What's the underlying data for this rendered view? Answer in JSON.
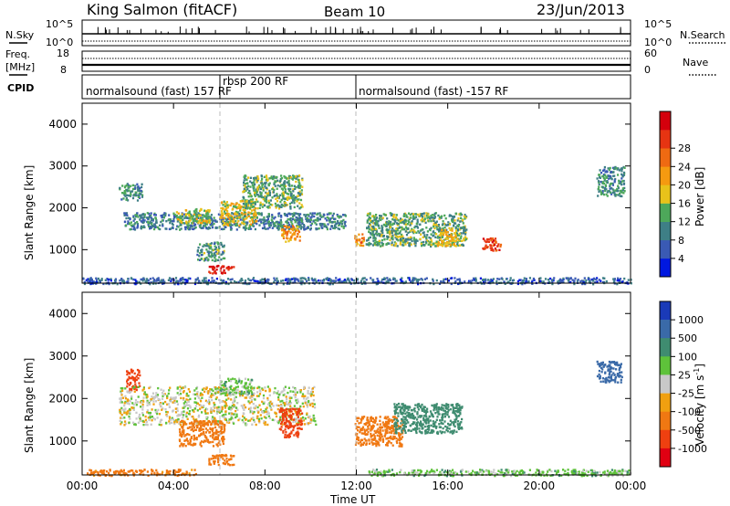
{
  "header": {
    "station": "King Salmon (fitACF)",
    "beam": "Beam 10",
    "date": "23/Jun/2013"
  },
  "panels": {
    "nsky_label": "N.Sky",
    "nsearch_label": "N.Search",
    "freq_label_line1": "Freq.",
    "freq_label_line2": "[MHz]",
    "nave_label": "Nave",
    "cpid_label": "CPID",
    "left_ticks_top": [
      "10^5",
      "10^0"
    ],
    "right_ticks_top": [
      "10^5",
      "10^0"
    ],
    "left_ticks_freq": [
      "18",
      "8"
    ],
    "right_ticks_nave": [
      "60",
      "0"
    ],
    "cpid_segments": [
      "normalsound (fast) 157 RF",
      "rbsp 200 RF",
      "normalsound (fast) -157 RF"
    ]
  },
  "axes": {
    "ylabel": "Slant Range [km]",
    "xlabel": "Time UT",
    "x_ticks": [
      "00:00",
      "04:00",
      "08:00",
      "12:00",
      "16:00",
      "20:00",
      "00:00"
    ],
    "y_ticks": [
      "1000",
      "2000",
      "3000",
      "4000"
    ]
  },
  "colorbars": {
    "power_label": "Power [dB]",
    "power_ticks": [
      "4",
      "8",
      "12",
      "16",
      "20",
      "24",
      "28"
    ],
    "velocity_label_main": "Velocity  [m s",
    "velocity_label_sup": "-1",
    "velocity_label_end": "]",
    "velocity_ticks": [
      "1000",
      "500",
      "100",
      "25",
      "-25",
      "-100",
      "-500",
      "-1000"
    ]
  },
  "colors": {
    "power_scale": [
      "#0018e0",
      "#3a5ab4",
      "#3e7f86",
      "#4da85a",
      "#e8c21a",
      "#f59a10",
      "#ef6a12",
      "#e63412",
      "#d4000c"
    ],
    "velocity_scale": [
      "#1a3ab8",
      "#3a6aa8",
      "#3f8c70",
      "#5ec23a",
      "#c8c8c8",
      "#f0a010",
      "#f07812",
      "#ee4010",
      "#e00012"
    ],
    "ground_scatter": "#b4b4b4"
  },
  "chart_data": {
    "type": "heatmap",
    "x_range_hours": [
      0,
      24
    ],
    "y_range_km": [
      200,
      4500
    ],
    "power_range_db": [
      0,
      30
    ],
    "velocity_range_ms": [
      -1000,
      1000
    ],
    "cpid_change_times_hours": [
      6.0,
      11.97
    ],
    "power_regions": [
      {
        "t0": 1.6,
        "t1": 2.6,
        "r0": 2200,
        "r1": 2600,
        "val": 9
      },
      {
        "t0": 1.8,
        "t1": 11.5,
        "r0": 1500,
        "r1": 1900,
        "val": 8
      },
      {
        "t0": 4.1,
        "t1": 5.6,
        "r0": 1650,
        "r1": 2000,
        "val": 14
      },
      {
        "t0": 5.0,
        "t1": 6.2,
        "r0": 750,
        "r1": 1200,
        "val": 10
      },
      {
        "t0": 5.5,
        "t1": 6.6,
        "r0": 450,
        "r1": 650,
        "val": 27
      },
      {
        "t0": 6.0,
        "t1": 7.6,
        "r0": 1600,
        "r1": 2200,
        "val": 15
      },
      {
        "t0": 7.0,
        "t1": 9.6,
        "r0": 2000,
        "r1": 2800,
        "val": 11
      },
      {
        "t0": 8.7,
        "t1": 9.5,
        "r0": 1200,
        "r1": 1600,
        "val": 19
      },
      {
        "t0": 11.9,
        "t1": 12.3,
        "r0": 1100,
        "r1": 1400,
        "val": 20
      },
      {
        "t0": 12.4,
        "t1": 16.8,
        "r0": 1100,
        "r1": 1900,
        "val": 11
      },
      {
        "t0": 15.5,
        "t1": 16.5,
        "r0": 1100,
        "r1": 1500,
        "val": 16
      },
      {
        "t0": 17.5,
        "t1": 18.3,
        "r0": 1000,
        "r1": 1300,
        "val": 24
      },
      {
        "t0": 22.5,
        "t1": 23.7,
        "r0": 2300,
        "r1": 3000,
        "val": 9
      },
      {
        "t0": 0.0,
        "t1": 24.0,
        "r0": 200,
        "r1": 350,
        "val": 6
      }
    ],
    "velocity_regions": [
      {
        "t0": 1.9,
        "t1": 2.5,
        "r0": 2200,
        "r1": 2700,
        "val": -900
      },
      {
        "t0": 1.6,
        "t1": 10.2,
        "r0": 1400,
        "r1": 2300,
        "val": 0
      },
      {
        "t0": 4.2,
        "t1": 6.2,
        "r0": 900,
        "r1": 1500,
        "val": -300
      },
      {
        "t0": 5.5,
        "t1": 6.6,
        "r0": 450,
        "r1": 700,
        "val": -200
      },
      {
        "t0": 6.0,
        "t1": 7.4,
        "r0": 2100,
        "r1": 2500,
        "val": 60
      },
      {
        "t0": 8.6,
        "t1": 9.6,
        "r0": 1100,
        "r1": 1800,
        "val": -800
      },
      {
        "t0": 11.9,
        "t1": 14.0,
        "r0": 900,
        "r1": 1600,
        "val": -250
      },
      {
        "t0": 13.6,
        "t1": 16.6,
        "r0": 1200,
        "r1": 1900,
        "val": 200
      },
      {
        "t0": 22.5,
        "t1": 23.6,
        "r0": 2400,
        "r1": 2900,
        "val": 700
      },
      {
        "t0": 0.2,
        "t1": 5.0,
        "r0": 200,
        "r1": 350,
        "val": -150
      },
      {
        "t0": 12.5,
        "t1": 24.0,
        "r0": 200,
        "r1": 350,
        "val": 60
      }
    ],
    "cpid_segments": [
      {
        "label": "normalsound (fast) 157 RF",
        "t0": 0.0,
        "t1": 6.0
      },
      {
        "label": "rbsp 200 RF",
        "t0": 6.0,
        "t1": 11.97
      },
      {
        "label": "normalsound (fast) -157 RF",
        "t0": 11.97,
        "t1": 24.0
      }
    ]
  }
}
